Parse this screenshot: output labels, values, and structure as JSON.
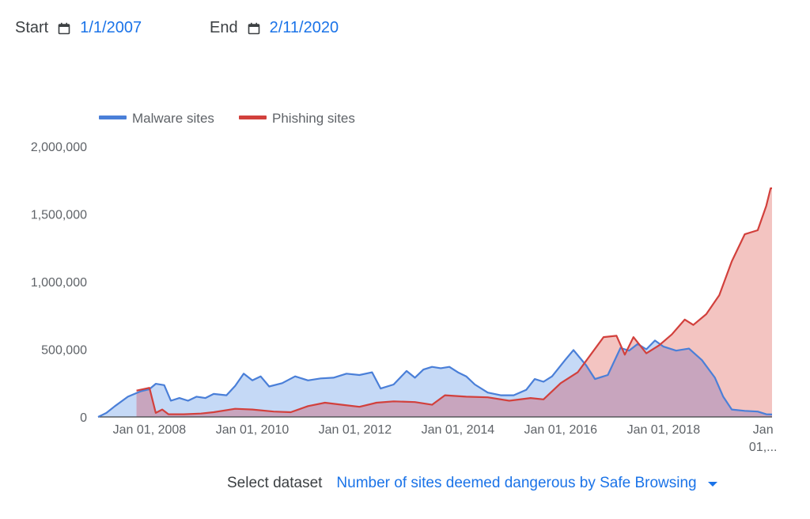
{
  "controls": {
    "start_label": "Start",
    "start_value": "1/1/2007",
    "end_label": "End",
    "end_value": "2/11/2020",
    "calendar_icon": "calendar-icon"
  },
  "dataset": {
    "label": "Select dataset",
    "selected": "Number of sites deemed dangerous by Safe Browsing"
  },
  "colors": {
    "malware": "#4a7fd8",
    "malware_fill": "#c5d9f6",
    "phishing": "#d2403c",
    "phishing_fill": "#f3c4c1",
    "overlap_fill": "#c8a5be",
    "accent": "#1a73e8"
  },
  "chart_data": {
    "type": "area",
    "title": "",
    "xlabel": "",
    "ylabel": "",
    "x_range": [
      "2007-01-01",
      "2020-02-11"
    ],
    "ylim": [
      0,
      2000000
    ],
    "y_ticks": [
      "2,000,000",
      "1,500,000",
      "1,000,000",
      "500,000",
      "0"
    ],
    "x_ticks": [
      "Jan 01, 2008",
      "Jan 01, 2010",
      "Jan 01, 2012",
      "Jan 01, 2014",
      "Jan 01, 2016",
      "Jan 01, 2018",
      "Jan 01,..."
    ],
    "legend_position": "top-left",
    "grid": false,
    "series": [
      {
        "name": "Malware sites",
        "points": [
          [
            "2007-01-01",
            0
          ],
          [
            "2007-03-01",
            30000
          ],
          [
            "2007-05-01",
            80000
          ],
          [
            "2007-08-01",
            150000
          ],
          [
            "2007-11-01",
            190000
          ],
          [
            "2008-01-01",
            205000
          ],
          [
            "2008-02-15",
            245000
          ],
          [
            "2008-04-15",
            235000
          ],
          [
            "2008-06-01",
            120000
          ],
          [
            "2008-08-01",
            140000
          ],
          [
            "2008-10-01",
            120000
          ],
          [
            "2008-12-01",
            150000
          ],
          [
            "2009-02-01",
            140000
          ],
          [
            "2009-04-01",
            170000
          ],
          [
            "2009-07-01",
            160000
          ],
          [
            "2009-09-01",
            230000
          ],
          [
            "2009-11-01",
            320000
          ],
          [
            "2010-01-01",
            270000
          ],
          [
            "2010-03-01",
            300000
          ],
          [
            "2010-05-01",
            225000
          ],
          [
            "2010-08-01",
            250000
          ],
          [
            "2010-11-01",
            300000
          ],
          [
            "2011-02-01",
            270000
          ],
          [
            "2011-05-01",
            285000
          ],
          [
            "2011-08-01",
            290000
          ],
          [
            "2011-11-01",
            320000
          ],
          [
            "2012-02-01",
            310000
          ],
          [
            "2012-05-01",
            330000
          ],
          [
            "2012-07-01",
            210000
          ],
          [
            "2012-10-01",
            240000
          ],
          [
            "2013-01-01",
            340000
          ],
          [
            "2013-03-01",
            290000
          ],
          [
            "2013-05-01",
            350000
          ],
          [
            "2013-07-01",
            370000
          ],
          [
            "2013-09-01",
            360000
          ],
          [
            "2013-11-01",
            370000
          ],
          [
            "2014-01-01",
            330000
          ],
          [
            "2014-03-01",
            300000
          ],
          [
            "2014-05-01",
            240000
          ],
          [
            "2014-08-01",
            180000
          ],
          [
            "2014-11-01",
            160000
          ],
          [
            "2015-02-01",
            160000
          ],
          [
            "2015-05-01",
            200000
          ],
          [
            "2015-07-01",
            280000
          ],
          [
            "2015-09-01",
            260000
          ],
          [
            "2015-11-01",
            300000
          ],
          [
            "2016-02-01",
            420000
          ],
          [
            "2016-04-01",
            495000
          ],
          [
            "2016-07-01",
            380000
          ],
          [
            "2016-09-01",
            280000
          ],
          [
            "2016-12-01",
            310000
          ],
          [
            "2017-03-01",
            510000
          ],
          [
            "2017-05-01",
            490000
          ],
          [
            "2017-07-01",
            540000
          ],
          [
            "2017-09-01",
            500000
          ],
          [
            "2017-11-01",
            565000
          ],
          [
            "2018-01-01",
            520000
          ],
          [
            "2018-04-01",
            490000
          ],
          [
            "2018-07-01",
            505000
          ],
          [
            "2018-10-01",
            420000
          ],
          [
            "2019-01-01",
            290000
          ],
          [
            "2019-03-01",
            150000
          ],
          [
            "2019-05-01",
            55000
          ],
          [
            "2019-08-01",
            45000
          ],
          [
            "2019-11-01",
            40000
          ],
          [
            "2020-01-01",
            20000
          ],
          [
            "2020-02-11",
            18000
          ]
        ]
      },
      {
        "name": "Phishing sites",
        "points": [
          [
            "2007-10-01",
            195000
          ],
          [
            "2008-01-01",
            215000
          ],
          [
            "2008-02-15",
            30000
          ],
          [
            "2008-04-01",
            55000
          ],
          [
            "2008-05-15",
            20000
          ],
          [
            "2008-09-01",
            20000
          ],
          [
            "2009-01-01",
            25000
          ],
          [
            "2009-04-01",
            35000
          ],
          [
            "2009-09-01",
            60000
          ],
          [
            "2010-01-01",
            55000
          ],
          [
            "2010-06-01",
            40000
          ],
          [
            "2010-10-01",
            35000
          ],
          [
            "2011-02-01",
            80000
          ],
          [
            "2011-06-01",
            105000
          ],
          [
            "2011-10-01",
            90000
          ],
          [
            "2012-02-01",
            75000
          ],
          [
            "2012-06-01",
            105000
          ],
          [
            "2012-10-01",
            115000
          ],
          [
            "2013-03-01",
            110000
          ],
          [
            "2013-07-01",
            90000
          ],
          [
            "2013-10-01",
            160000
          ],
          [
            "2014-03-01",
            150000
          ],
          [
            "2014-08-01",
            145000
          ],
          [
            "2015-01-01",
            120000
          ],
          [
            "2015-06-01",
            140000
          ],
          [
            "2015-09-01",
            130000
          ],
          [
            "2016-01-01",
            250000
          ],
          [
            "2016-05-01",
            330000
          ],
          [
            "2016-08-01",
            460000
          ],
          [
            "2016-11-01",
            590000
          ],
          [
            "2017-02-01",
            600000
          ],
          [
            "2017-04-01",
            460000
          ],
          [
            "2017-06-01",
            590000
          ],
          [
            "2017-09-01",
            470000
          ],
          [
            "2017-12-01",
            530000
          ],
          [
            "2018-03-01",
            610000
          ],
          [
            "2018-06-01",
            720000
          ],
          [
            "2018-08-01",
            680000
          ],
          [
            "2018-11-01",
            760000
          ],
          [
            "2019-02-01",
            900000
          ],
          [
            "2019-05-01",
            1150000
          ],
          [
            "2019-08-01",
            1350000
          ],
          [
            "2019-11-01",
            1380000
          ],
          [
            "2020-01-01",
            1560000
          ],
          [
            "2020-02-01",
            1690000
          ],
          [
            "2020-02-11",
            1690000
          ]
        ]
      }
    ]
  }
}
